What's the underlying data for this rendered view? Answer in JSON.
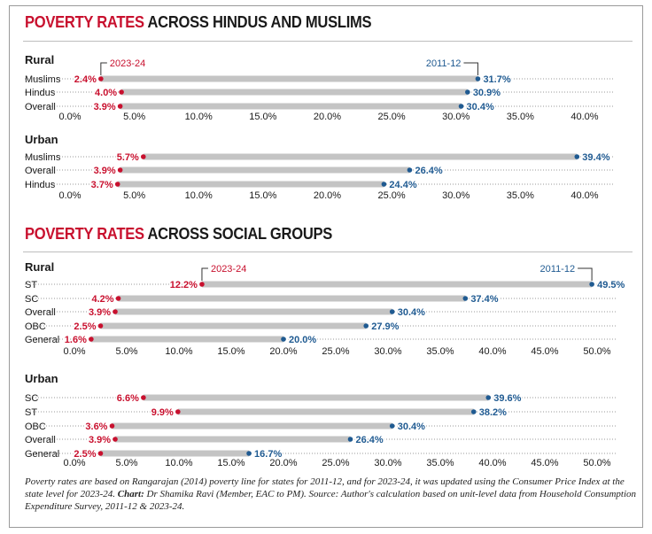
{
  "sections": [
    {
      "title_highlight": "POVERTY RATES",
      "title_rest": "ACROSS HINDUS AND MUSLIMS"
    },
    {
      "title_highlight": "POVERTY RATES",
      "title_rest": "ACROSS SOCIAL GROUPS"
    }
  ],
  "legend": {
    "label_2023": "2023-24",
    "label_2011": "2011-12"
  },
  "colors": {
    "y2023": "#c8102e",
    "y2011": "#1f5a91",
    "bar": "#c4c4c4",
    "text": "#1a1a1a"
  },
  "chart_data": [
    {
      "type": "dumbbell",
      "title": "Rural",
      "series_names": [
        "2023-24",
        "2011-12"
      ],
      "categories": [
        "Muslims",
        "Hindus",
        "Overall"
      ],
      "v2023": [
        2.4,
        4.0,
        3.9
      ],
      "labels2023": [
        "2.4%",
        "4.0%",
        "3.9%"
      ],
      "v2011": [
        31.7,
        30.9,
        30.4
      ],
      "labels2011": [
        "31.7%",
        "30.9%",
        "30.4%"
      ],
      "xticks": [
        "0.0%",
        "5.0%",
        "10.0%",
        "15.0%",
        "20.0%",
        "25.0%",
        "30.0%",
        "35.0%",
        "40.0%"
      ],
      "xlim": [
        0,
        40
      ]
    },
    {
      "type": "dumbbell",
      "title": "Urban",
      "series_names": [
        "2023-24",
        "2011-12"
      ],
      "categories": [
        "Muslims",
        "Overall",
        "Hindus"
      ],
      "v2023": [
        5.7,
        3.9,
        3.7
      ],
      "labels2023": [
        "5.7%",
        "3.9%",
        "3.7%"
      ],
      "v2011": [
        39.4,
        26.4,
        24.4
      ],
      "labels2011": [
        "39.4%",
        "26.4%",
        "24.4%"
      ],
      "xticks": [
        "0.0%",
        "5.0%",
        "10.0%",
        "15.0%",
        "20.0%",
        "25.0%",
        "30.0%",
        "35.0%",
        "40.0%"
      ],
      "xlim": [
        0,
        40
      ]
    },
    {
      "type": "dumbbell",
      "title": "Rural",
      "series_names": [
        "2023-24",
        "2011-12"
      ],
      "categories": [
        "ST",
        "SC",
        "Overall",
        "OBC",
        "General"
      ],
      "v2023": [
        12.2,
        4.2,
        3.9,
        2.5,
        1.6
      ],
      "labels2023": [
        "12.2%",
        "4.2%",
        "3.9%",
        "2.5%",
        "1.6%"
      ],
      "v2011": [
        49.5,
        37.4,
        30.4,
        27.9,
        20.0
      ],
      "labels2011": [
        "49.5%",
        "37.4%",
        "30.4%",
        "27.9%",
        "20.0%"
      ],
      "xticks": [
        "0.0%",
        "5.0%",
        "10.0%",
        "15.0%",
        "20.0%",
        "25.0%",
        "30.0%",
        "35.0%",
        "40.0%",
        "45.0%",
        "50.0%"
      ],
      "xlim": [
        0,
        50
      ]
    },
    {
      "type": "dumbbell",
      "title": "Urban",
      "series_names": [
        "2023-24",
        "2011-12"
      ],
      "categories": [
        "SC",
        "ST",
        "OBC",
        "Overall",
        "General"
      ],
      "v2023": [
        6.6,
        9.9,
        3.6,
        3.9,
        2.5
      ],
      "labels2023": [
        "6.6%",
        "9.9%",
        "3.6%",
        "3.9%",
        "2.5%"
      ],
      "v2011": [
        39.6,
        38.2,
        30.4,
        26.4,
        16.7
      ],
      "labels2011": [
        "39.6%",
        "38.2%",
        "30.4%",
        "26.4%",
        "16.7%"
      ],
      "xticks": [
        "0.0%",
        "5.0%",
        "10.0%",
        "15.0%",
        "20.0%",
        "25.0%",
        "30.0%",
        "35.0%",
        "40.0%",
        "45.0%",
        "50.0%"
      ],
      "xlim": [
        0,
        50
      ]
    }
  ],
  "footnote": {
    "text": "Poverty rates are based on Rangarajan (2014) poverty line for states for 2011-12, and for 2023-24, it was updated using the Consumer Price Index at the state level for 2023-24.",
    "chart_label": "Chart:",
    "credit": "Dr Shamika Ravi (Member, EAC to PM). Source: Author's calculation based on unit-level data from Household Consumption Expenditure Survey, 2011-12 & 2023-24."
  }
}
